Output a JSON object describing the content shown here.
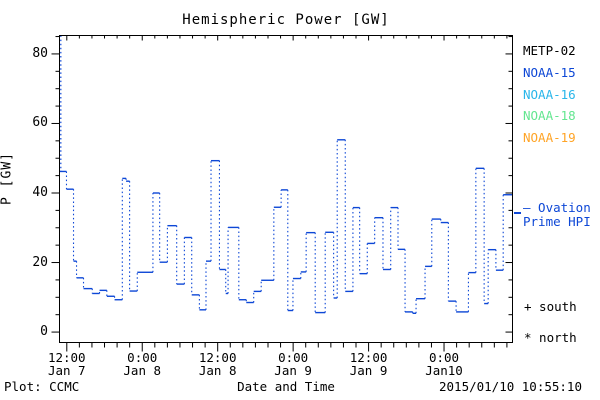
{
  "title": "Hemispheric Power [GW]",
  "axes": {
    "y_label": "P [GW]",
    "x_label": "Date and Time",
    "y_major_ticks": [
      0,
      20,
      40,
      60,
      80
    ],
    "y_minor_step": 5,
    "y_range": [
      -3,
      85.3
    ],
    "x_major_ticks": [
      {
        "h": 12,
        "time": "12:00",
        "date": "Jan 7"
      },
      {
        "h": 24,
        "time": "0:00",
        "date": "Jan 8"
      },
      {
        "h": 36,
        "time": "12:00",
        "date": "Jan 8"
      },
      {
        "h": 48,
        "time": "0:00",
        "date": "Jan 9"
      },
      {
        "h": 60,
        "time": "12:00",
        "date": "Jan 9"
      },
      {
        "h": 72,
        "time": "0:00",
        "date": "Jan10"
      }
    ],
    "x_minor_step_hours": 2,
    "x_range_hours": [
      10.84,
      82.89
    ]
  },
  "legend": {
    "satellites": [
      {
        "label": "METP-02",
        "color": "#000000"
      },
      {
        "label": "NOAA-15",
        "color": "#0d47d6"
      },
      {
        "label": "NOAA-16",
        "color": "#29b6ea"
      },
      {
        "label": "NOAA-18",
        "color": "#63e690"
      },
      {
        "label": "NOAA-19",
        "color": "#ffa426"
      }
    ],
    "ovation_line1": "— Ovation",
    "ovation_line2": "Prime HPI",
    "south_label": "+ south",
    "north_label": "* north"
  },
  "footer": {
    "plot_credit": "Plot: CCMC",
    "timestamp": "2015/01/10 10:55:10"
  },
  "chart_data": {
    "type": "line",
    "subtype": "step-post, dotted vertical connectors",
    "title": "Hemispheric Power [GW]",
    "xlabel": "Date and Time",
    "ylabel": "P [GW]",
    "series_name": "Ovation Prime HPI",
    "color": "#0d47d6",
    "grid": false,
    "legend_position": "right-outside",
    "x_unit": "hours since 2015-01-07 00:00 UT",
    "x_end": 82.89,
    "lead_in_from_top_at_h": 11.05,
    "ylim": [
      -3,
      85.3
    ],
    "steps": [
      [
        10.7,
        46.2
      ],
      [
        11.95,
        41.1
      ],
      [
        13.07,
        20.4
      ],
      [
        13.55,
        15.6
      ],
      [
        14.66,
        12.5
      ],
      [
        16.05,
        11.1
      ],
      [
        17.21,
        12.0
      ],
      [
        18.37,
        10.3
      ],
      [
        19.6,
        9.3
      ],
      [
        20.83,
        44.2
      ],
      [
        21.43,
        43.4
      ],
      [
        21.99,
        11.8
      ],
      [
        23.21,
        17.2
      ],
      [
        25.7,
        40.0
      ],
      [
        26.77,
        20.1
      ],
      [
        28.0,
        30.6
      ],
      [
        29.48,
        13.8
      ],
      [
        30.7,
        27.2
      ],
      [
        31.87,
        10.7
      ],
      [
        33.09,
        6.4
      ],
      [
        34.14,
        20.4
      ],
      [
        34.94,
        49.3
      ],
      [
        36.28,
        18.0
      ],
      [
        37.28,
        11.1
      ],
      [
        37.65,
        30.1
      ],
      [
        39.36,
        9.3
      ],
      [
        40.55,
        8.5
      ],
      [
        41.73,
        11.7
      ],
      [
        42.92,
        14.9
      ],
      [
        44.93,
        35.9
      ],
      [
        46.09,
        40.9
      ],
      [
        47.15,
        6.2
      ],
      [
        47.97,
        15.4
      ],
      [
        49.22,
        17.3
      ],
      [
        50.07,
        28.6
      ],
      [
        51.51,
        5.6
      ],
      [
        53.1,
        28.7
      ],
      [
        54.44,
        9.8
      ],
      [
        55.01,
        55.3
      ],
      [
        56.29,
        11.7
      ],
      [
        57.51,
        35.8
      ],
      [
        58.58,
        16.8
      ],
      [
        59.79,
        25.5
      ],
      [
        60.97,
        32.9
      ],
      [
        62.29,
        18.0
      ],
      [
        63.52,
        35.8
      ],
      [
        64.68,
        23.8
      ],
      [
        65.8,
        5.8
      ],
      [
        67.02,
        5.4
      ],
      [
        67.55,
        9.6
      ],
      [
        68.98,
        18.9
      ],
      [
        70.05,
        32.5
      ],
      [
        71.48,
        31.5
      ],
      [
        72.69,
        8.9
      ],
      [
        73.92,
        5.8
      ],
      [
        75.88,
        17.1
      ],
      [
        77.06,
        47.1
      ],
      [
        78.38,
        8.2
      ],
      [
        79.02,
        23.7
      ],
      [
        80.25,
        17.8
      ],
      [
        81.41,
        39.5
      ]
    ]
  }
}
